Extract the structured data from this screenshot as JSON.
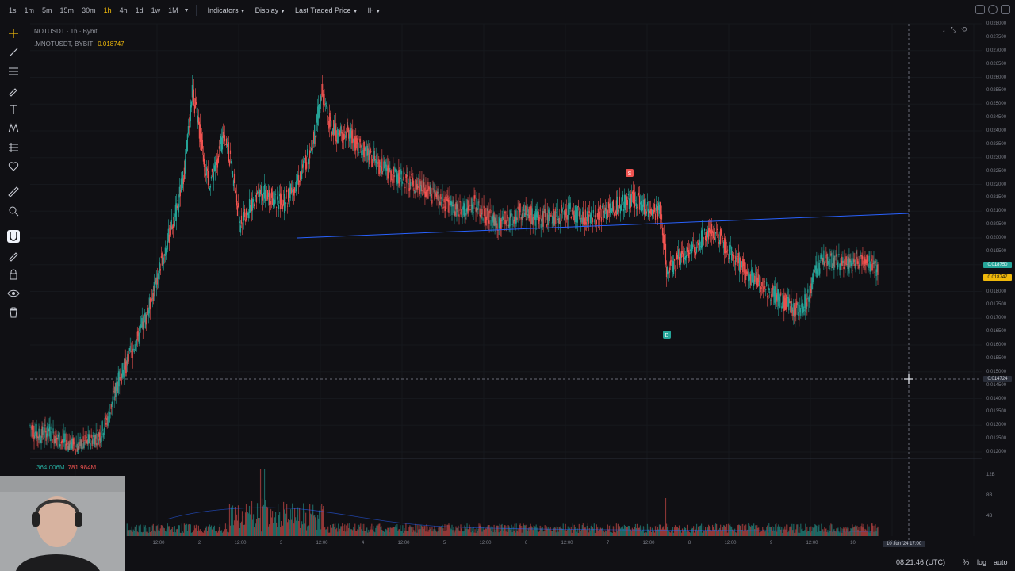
{
  "toolbar": {
    "timeframes": [
      "1s",
      "1m",
      "5m",
      "15m",
      "30m",
      "1h",
      "4h",
      "1d",
      "1w",
      "1M"
    ],
    "active_timeframe": "1h",
    "indicators_label": "Indicators",
    "display_label": "Display",
    "price_type_label": "Last Traded Price"
  },
  "legend": {
    "line1": "NOTUSDT · 1h · Bybit",
    "line2": ".MNOTUSDT, BYBIT",
    "value": "0.018747"
  },
  "volume_legend": {
    "a": "364.006M",
    "b": "781.984M"
  },
  "price_scale": {
    "labels": [
      "0.028000",
      "0.027500",
      "0.027000",
      "0.026500",
      "0.026000",
      "0.025500",
      "0.025000",
      "0.024500",
      "0.024000",
      "0.023500",
      "0.023000",
      "0.022500",
      "0.022000",
      "0.021500",
      "0.021000",
      "0.020500",
      "0.020000",
      "0.019500",
      "0.019000",
      "0.018500",
      "0.018000",
      "0.017500",
      "0.017000",
      "0.016500",
      "0.016000",
      "0.015500",
      "0.015000",
      "0.014500",
      "0.014000",
      "0.013500",
      "0.013000",
      "0.012500",
      "0.012000"
    ],
    "tag_green": "0.018750",
    "tag_yellow": "0.018747",
    "crosshair_price": "0.014724"
  },
  "volume_scale": [
    "12B",
    "8B",
    "4B"
  ],
  "time_axis": {
    "labels": [
      "12:00",
      "2",
      "12:00",
      "3",
      "12:00",
      "4",
      "12:00",
      "5",
      "12:00",
      "6",
      "12:00",
      "7",
      "12:00",
      "8",
      "12:00",
      "9",
      "12:00",
      "10",
      "12:00"
    ],
    "cursor": "10 Jun '24  17:00"
  },
  "markers": {
    "sell": "S",
    "buy": "B"
  },
  "bottom_bar": {
    "clock": "08:21:46 (UTC)",
    "percent": "%",
    "log": "log",
    "auto": "auto"
  },
  "colors": {
    "up": "#26a69a",
    "down": "#ef5350",
    "trendline": "#2962ff",
    "accent": "#f0b90b",
    "background": "#101014"
  },
  "chart_data": {
    "type": "candlestick",
    "symbol": "NOTUSDT",
    "interval": "1h",
    "ylim": [
      0.012,
      0.028
    ],
    "ohlc_path": [
      [
        0,
        0.013
      ],
      [
        12,
        0.0126
      ],
      [
        24,
        0.0128
      ],
      [
        40,
        0.0124
      ],
      [
        60,
        0.0122
      ],
      [
        75,
        0.0124
      ],
      [
        90,
        0.0127
      ],
      [
        100,
        0.0134
      ],
      [
        110,
        0.0145
      ],
      [
        125,
        0.0155
      ],
      [
        140,
        0.0165
      ],
      [
        155,
        0.0178
      ],
      [
        165,
        0.019
      ],
      [
        175,
        0.02
      ],
      [
        185,
        0.021
      ],
      [
        195,
        0.0225
      ],
      [
        205,
        0.0255
      ],
      [
        215,
        0.0238
      ],
      [
        225,
        0.022
      ],
      [
        235,
        0.0227
      ],
      [
        245,
        0.024
      ],
      [
        255,
        0.0225
      ],
      [
        265,
        0.0205
      ],
      [
        275,
        0.021
      ],
      [
        290,
        0.0218
      ],
      [
        305,
        0.0215
      ],
      [
        320,
        0.0213
      ],
      [
        335,
        0.022
      ],
      [
        350,
        0.023
      ],
      [
        360,
        0.024
      ],
      [
        368,
        0.0255
      ],
      [
        378,
        0.0242
      ],
      [
        390,
        0.0238
      ],
      [
        400,
        0.024
      ],
      [
        410,
        0.0236
      ],
      [
        425,
        0.0232
      ],
      [
        440,
        0.0227
      ],
      [
        455,
        0.0224
      ],
      [
        470,
        0.0222
      ],
      [
        485,
        0.022
      ],
      [
        500,
        0.0218
      ],
      [
        515,
        0.0214
      ],
      [
        530,
        0.0212
      ],
      [
        545,
        0.021
      ],
      [
        560,
        0.0213
      ],
      [
        575,
        0.0208
      ],
      [
        590,
        0.0206
      ],
      [
        605,
        0.0207
      ],
      [
        620,
        0.021
      ],
      [
        640,
        0.0207
      ],
      [
        660,
        0.0208
      ],
      [
        680,
        0.021
      ],
      [
        700,
        0.0207
      ],
      [
        720,
        0.0209
      ],
      [
        740,
        0.0212
      ],
      [
        760,
        0.0215
      ],
      [
        780,
        0.021
      ],
      [
        795,
        0.021
      ],
      [
        802,
        0.0188
      ],
      [
        810,
        0.019
      ],
      [
        825,
        0.0195
      ],
      [
        840,
        0.0197
      ],
      [
        855,
        0.0203
      ],
      [
        865,
        0.0202
      ],
      [
        880,
        0.0195
      ],
      [
        895,
        0.019
      ],
      [
        910,
        0.0185
      ],
      [
        925,
        0.0182
      ],
      [
        940,
        0.0178
      ],
      [
        955,
        0.0175
      ],
      [
        970,
        0.0172
      ],
      [
        980,
        0.0178
      ],
      [
        990,
        0.0188
      ],
      [
        1000,
        0.0192
      ],
      [
        1015,
        0.0191
      ],
      [
        1030,
        0.019
      ],
      [
        1045,
        0.0192
      ],
      [
        1060,
        0.019
      ],
      [
        1068,
        0.0187
      ]
    ],
    "annotations": [
      "S",
      "B"
    ]
  }
}
